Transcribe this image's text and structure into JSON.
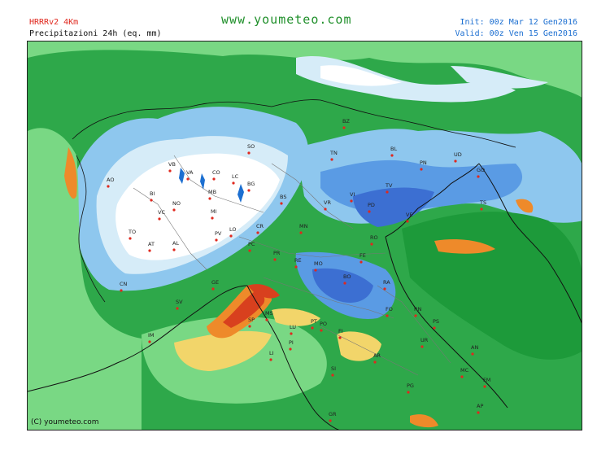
{
  "header": {
    "model": "HRRRv2 4Km",
    "product": "Precipitazioni 24h (eq. mm)",
    "site": "www.youmeteo.com",
    "init": "Init: 00z Mar 12 Gen2016",
    "valid": "Valid: 00z Ven 15 Gen2016"
  },
  "footer": {
    "copyright": "(C) youmeteo.com"
  },
  "colors": {
    "light_blue": "#d6ecf8",
    "sky_blue": "#8ec7ee",
    "mid_blue": "#5a9be4",
    "deep_blue": "#3c6fd2",
    "light_green": "#79d884",
    "green": "#34b84c",
    "dark_green": "#1d9a3a",
    "yellow": "#f2d56a",
    "orange": "#ee8a2a",
    "red": "#d8401e",
    "white": "#ffffff"
  },
  "cities": {
    "AO": "AO",
    "VB": "VB",
    "VA": "VA",
    "CO": "CO",
    "SO": "SO",
    "BZ": "BZ",
    "BI": "BI",
    "LC": "LC",
    "NO": "NO",
    "MB": "MB",
    "BG": "BG",
    "VC": "VC",
    "MI": "MI",
    "TO": "TO",
    "AT": "AT",
    "AL": "AL",
    "PV": "PV",
    "LO": "LO",
    "CR": "CR",
    "PC": "PC",
    "BS": "BS",
    "MN": "MN",
    "VR": "VR",
    "VI": "VI",
    "PD": "PD",
    "TV": "TV",
    "VE": "VE",
    "BL": "BL",
    "TN": "TN",
    "PN": "PN",
    "UD": "UD",
    "GO": "GO",
    "TS": "TS",
    "PR": "PR",
    "RE": "RE",
    "MO": "MO",
    "FE": "FE",
    "RO": "RO",
    "BO": "BO",
    "RA": "RA",
    "FO": "FO",
    "RN": "RN",
    "PS": "PS",
    "CN": "CN",
    "GE": "GE",
    "SV": "SV",
    "IM": "IM",
    "SP": "SP",
    "MS": "MS",
    "LU": "LU",
    "PT": "PT",
    "PO": "PO",
    "FI": "FI",
    "PI": "PI",
    "LI": "LI",
    "AR": "AR",
    "UR": "UR",
    "AN": "AN",
    "SI": "SI",
    "PG": "PG",
    "MC": "MC",
    "FM": "FM",
    "AP": "AP",
    "GR": "GR"
  }
}
